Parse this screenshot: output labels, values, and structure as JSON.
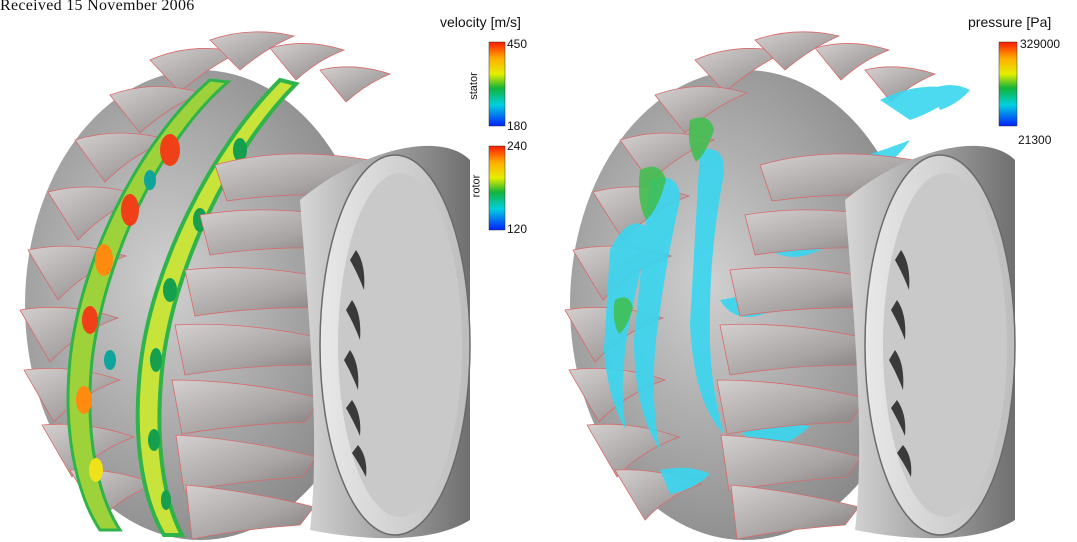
{
  "received_line": "Received 15 November 2006",
  "left_panel": {
    "colorbar_title": "velocity [m/s]",
    "stator": {
      "label": "stator",
      "max": "450",
      "min": "180"
    },
    "rotor": {
      "label": "rotor",
      "max": "240",
      "min": "120"
    }
  },
  "right_panel": {
    "colorbar_title": "pressure [Pa]",
    "max": "329000",
    "min": "21300"
  },
  "colors": {
    "blade": "#b2b2b2",
    "blade_shadow": "#7c7c7c",
    "blade_edge": "#e05a5a",
    "vortex": "#39d6f0",
    "vortex_green": "#3fbf4c",
    "ring_green": "#2fb34a",
    "ring_yellow": "#f0e21a",
    "ring_red": "#f04018"
  },
  "icons": [
    "turbine-render-velocity",
    "turbine-render-pressure"
  ]
}
